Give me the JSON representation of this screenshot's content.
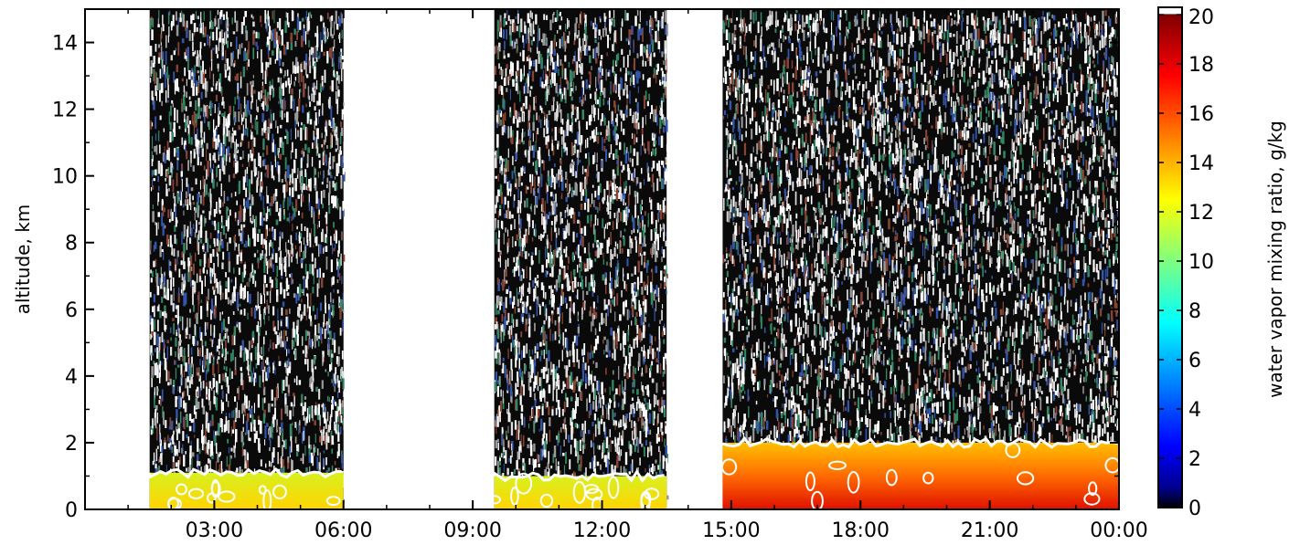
{
  "chart_data": {
    "type": "heatmap",
    "title": "",
    "xlabel": "",
    "ylabel": "altitude, km",
    "x_ticks": [
      "03:00",
      "06:00",
      "09:00",
      "12:00",
      "15:00",
      "18:00",
      "21:00",
      "00:00"
    ],
    "x_tick_hours": [
      3,
      6,
      9,
      12,
      15,
      18,
      21,
      24
    ],
    "xlim_hours": [
      0,
      24
    ],
    "y_ticks": [
      "0",
      "2",
      "4",
      "6",
      "8",
      "10",
      "12",
      "14"
    ],
    "ylim": [
      0,
      15
    ],
    "colorbar": {
      "label": "water vapor mixing ratio, g/kg",
      "ticks": [
        "0",
        "2",
        "4",
        "6",
        "8",
        "10",
        "12",
        "14",
        "16",
        "18",
        "20"
      ],
      "range": [
        0,
        20
      ],
      "colormap": "jet",
      "over_color": "#ffffff"
    },
    "data_segments_hours": [
      [
        1.5,
        6.0
      ],
      [
        9.5,
        13.5
      ],
      [
        14.8,
        24.0
      ]
    ],
    "contour_color": "#ffffff",
    "near_surface_mixing_ratio": [
      {
        "segment": 1,
        "value": 12.5,
        "top_km": 1.1
      },
      {
        "segment": 2,
        "value": 11.0,
        "top_km": 1.0
      },
      {
        "segment": 3,
        "value": 17.5,
        "top_km": 2.0
      }
    ],
    "grid": false
  }
}
